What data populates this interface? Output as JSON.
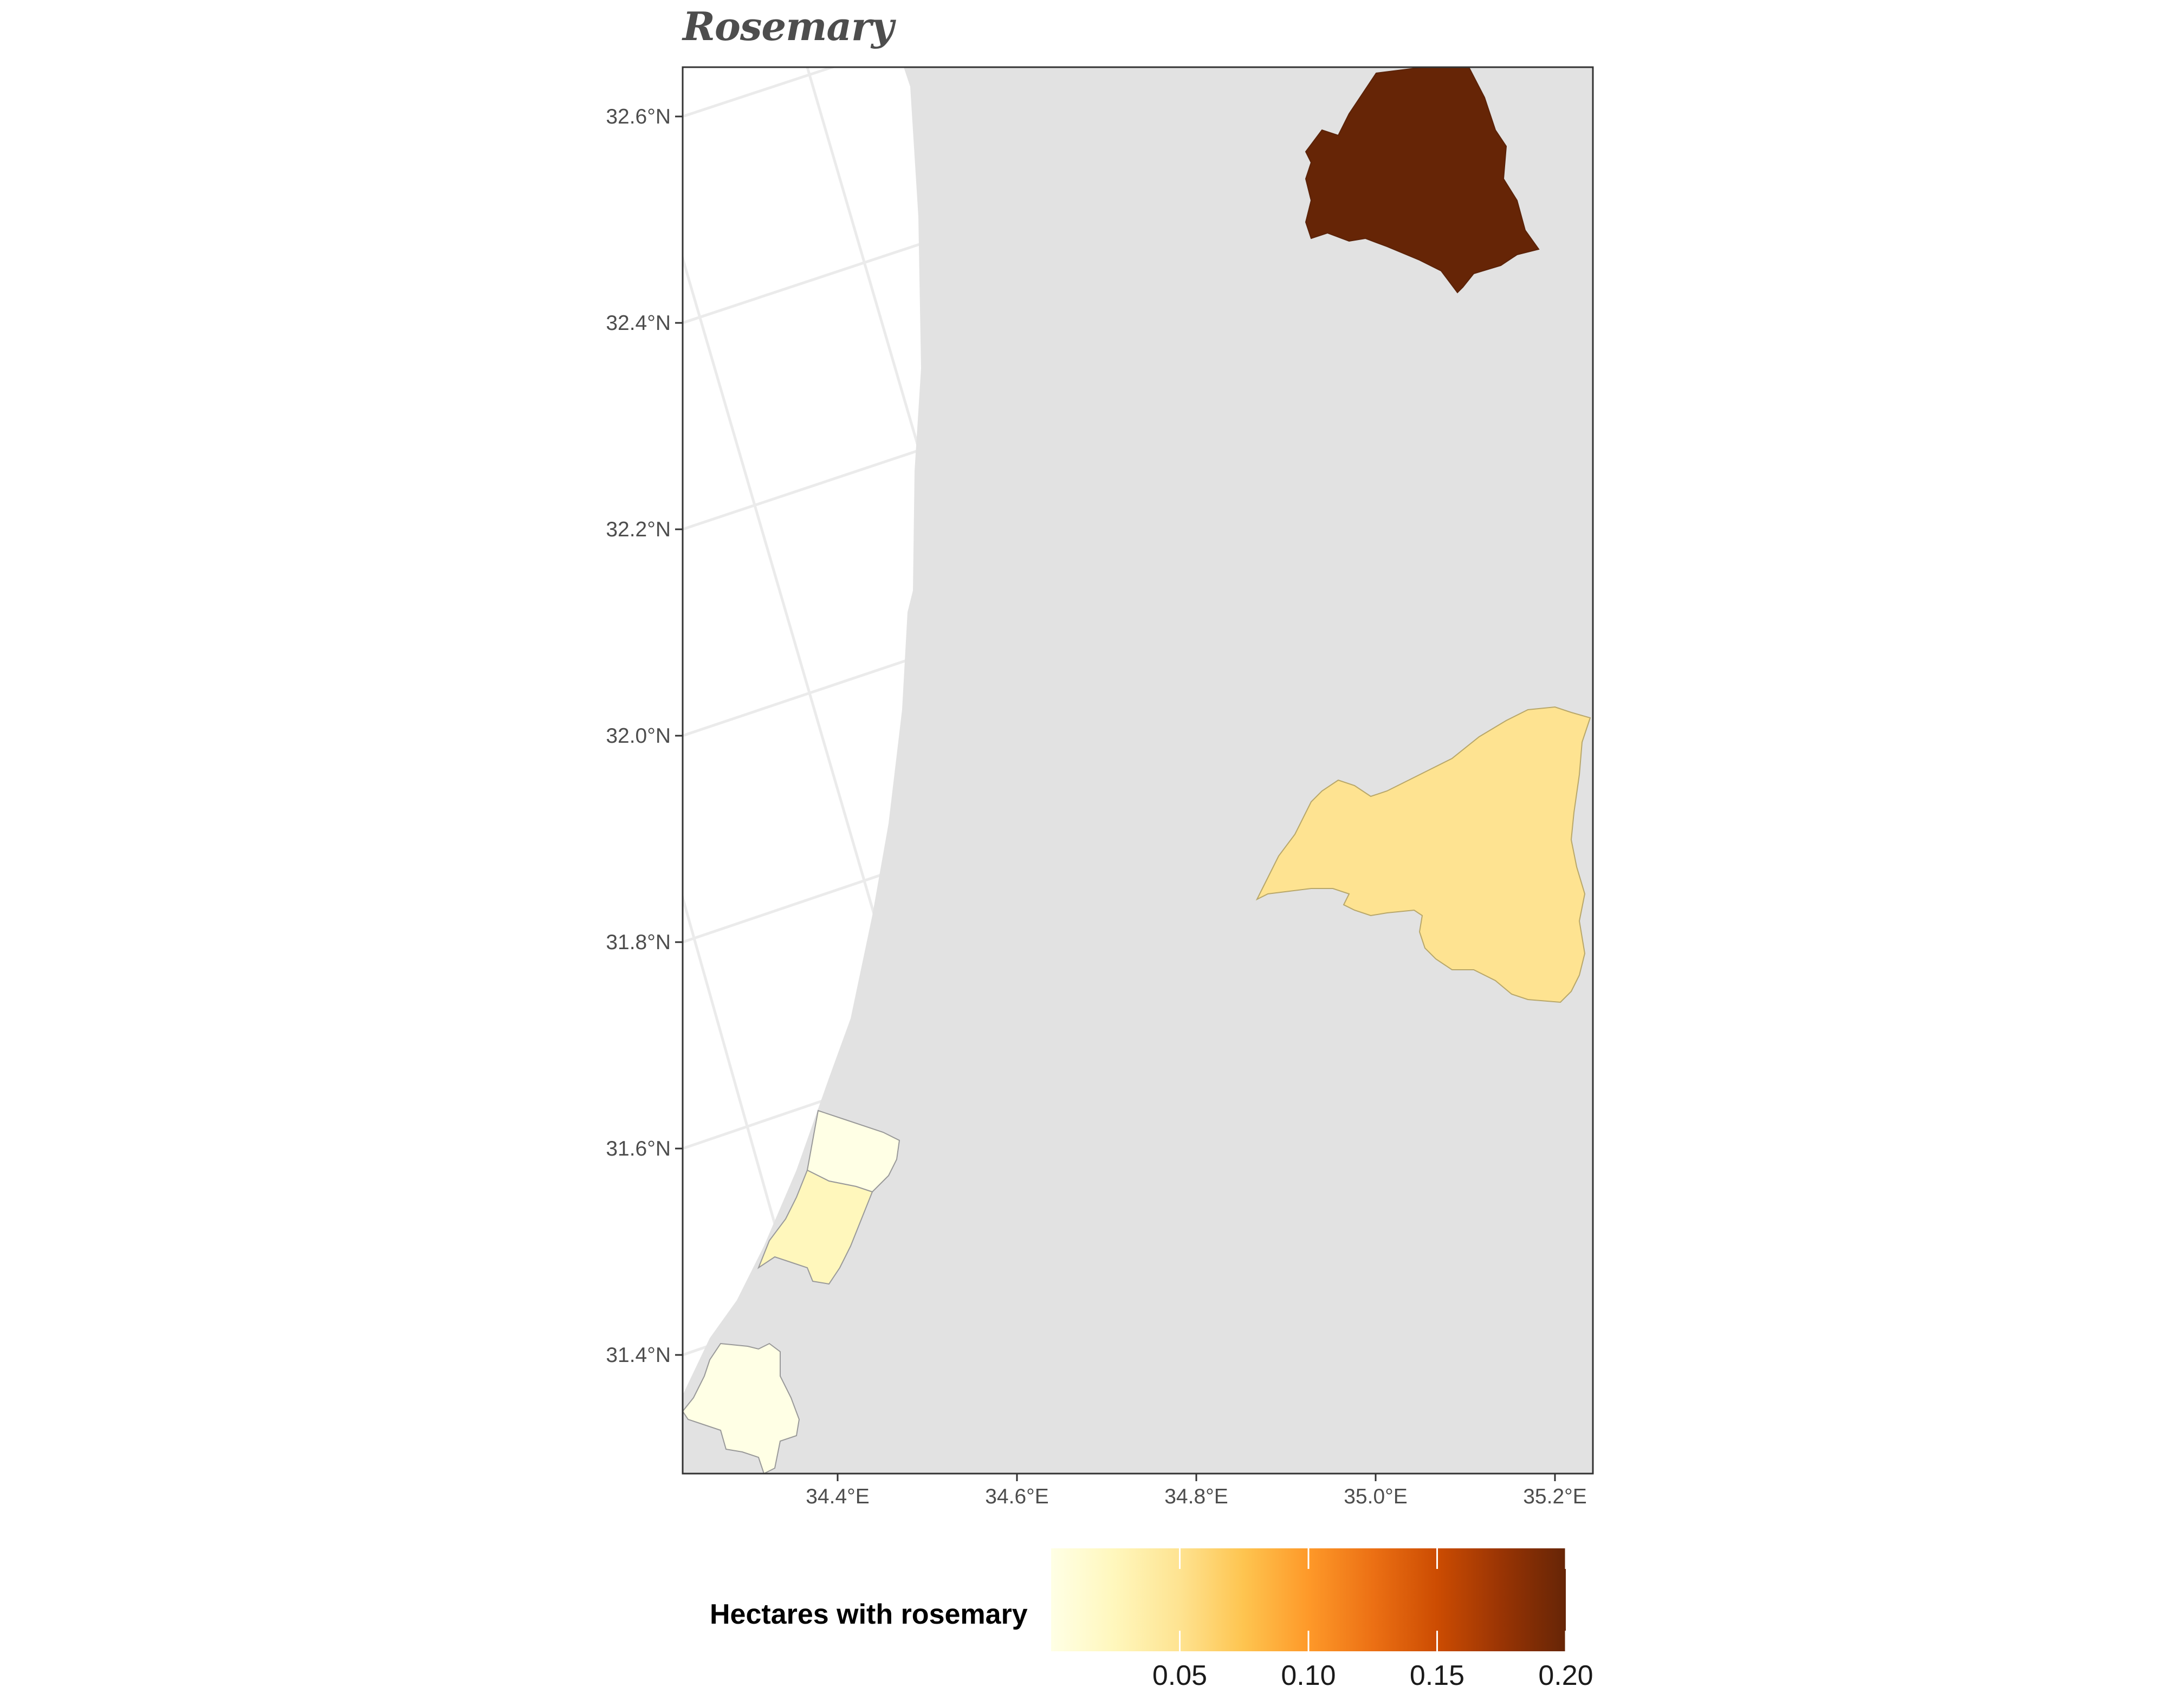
{
  "title": "Rosemary",
  "map": {
    "y_ticks": [
      "32.6°N",
      "32.4°N",
      "32.2°N",
      "32.0°N",
      "31.8°N",
      "31.6°N",
      "31.4°N"
    ],
    "x_ticks": [
      "34.4°E",
      "34.6°E",
      "34.8°E",
      "35.0°E",
      "35.2°E"
    ],
    "land_color": "#e2e2e2",
    "sea_color": "#ffffff",
    "graticule_color": "#ebebeb",
    "regions": [
      {
        "name": "northern-region",
        "value": 0.2,
        "color": "#662506"
      },
      {
        "name": "central-east-region",
        "value": 0.07,
        "color": "#fee391"
      },
      {
        "name": "coastal-region-north",
        "value": 0.0,
        "color": "#ffffe5"
      },
      {
        "name": "coastal-region-middle",
        "value": 0.03,
        "color": "#fff7bc"
      },
      {
        "name": "coastal-region-south",
        "value": 0.0,
        "color": "#ffffe5"
      }
    ]
  },
  "legend": {
    "title": "Hectares with rosemary",
    "tick_labels": [
      "0.05",
      "0.10",
      "0.15",
      "0.20"
    ],
    "tick_values": [
      0.05,
      0.1,
      0.15,
      0.2
    ],
    "range": [
      0.0,
      0.2
    ],
    "colors": [
      "#ffffe5",
      "#fff7bc",
      "#fee391",
      "#fec44f",
      "#fe9929",
      "#ec7014",
      "#cc4c02",
      "#993404",
      "#662506"
    ]
  }
}
